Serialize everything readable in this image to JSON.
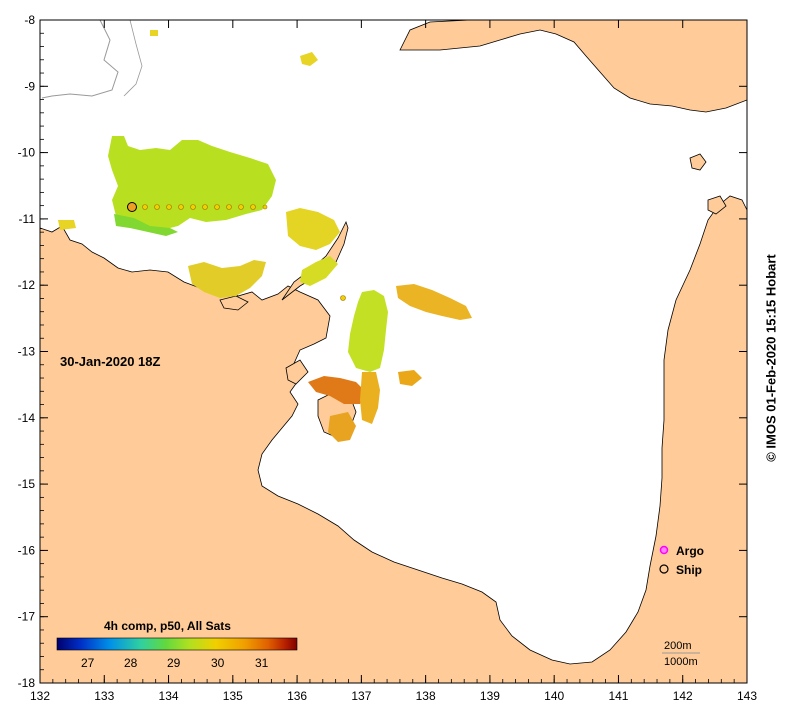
{
  "map": {
    "date_label": "30-Jan-2020 18Z",
    "x_ticks": [
      "132",
      "133",
      "134",
      "135",
      "136",
      "137",
      "138",
      "139",
      "140",
      "141",
      "142",
      "143"
    ],
    "y_ticks": [
      "-8",
      "-9",
      "-10",
      "-11",
      "-12",
      "-13",
      "-14",
      "-15",
      "-16",
      "-17",
      "-18"
    ],
    "lon_range": [
      132,
      143
    ],
    "lat_range": [
      -8,
      -18
    ]
  },
  "legend": {
    "argo_label": "Argo",
    "ship_label": "Ship",
    "argo_color": "#ff00ff",
    "ship_color": "#000000"
  },
  "colorbar": {
    "title": "4h comp, p50, All Sats",
    "ticks": [
      "27",
      "28",
      "29",
      "30",
      "31"
    ],
    "colors": [
      "#00006e",
      "#0030c8",
      "#0090e8",
      "#30d0a0",
      "#60d840",
      "#b0e020",
      "#f0d000",
      "#f0a000",
      "#e06000",
      "#b82000",
      "#800000"
    ]
  },
  "contours": {
    "label_200": "200m",
    "label_1000": "1000m"
  },
  "credit": "© IMOS 01-Feb-2020 15:15 Hobart",
  "colors": {
    "land": "#ffcc99",
    "sst_low": "#a8e020",
    "sst_mid": "#e8d020",
    "sst_high": "#e89a10"
  }
}
